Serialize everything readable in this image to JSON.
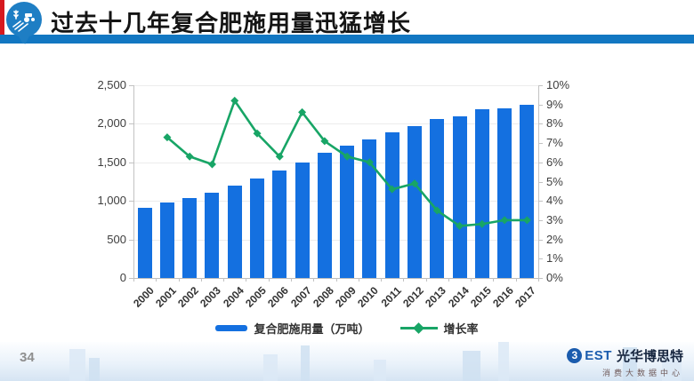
{
  "header": {
    "title": "过去十几年复合肥施用量迅猛增长"
  },
  "icons": {
    "balloon_logo": "agriculture-balloon-pin-icon",
    "brand_mark": "best-circle-3-icon"
  },
  "colors": {
    "title_underline": "#1277c2",
    "red_accent": "#d6191f",
    "bar_blue": "#1470e0",
    "line_green": "#18a566",
    "logo_blue": "#1b5cae"
  },
  "chart_data": {
    "type": "bar",
    "subtype": "bar+line combo",
    "categories": [
      "2000",
      "2001",
      "2002",
      "2003",
      "2004",
      "2005",
      "2006",
      "2007",
      "2008",
      "2009",
      "2010",
      "2011",
      "2012",
      "2013",
      "2014",
      "2015",
      "2016",
      "2017"
    ],
    "series": [
      {
        "name": "复合肥施用量（万吨）",
        "type": "bar",
        "axis": "left",
        "color": "#1470e0",
        "values": [
          910,
          980,
          1040,
          1110,
          1200,
          1290,
          1390,
          1500,
          1620,
          1720,
          1800,
          1890,
          1970,
          2060,
          2100,
          2190,
          2200,
          2250
        ]
      },
      {
        "name": "增长率",
        "type": "line",
        "axis": "right",
        "color": "#18a566",
        "values": [
          null,
          7.3,
          6.3,
          5.9,
          9.2,
          7.5,
          6.3,
          8.6,
          7.1,
          6.3,
          6.0,
          4.6,
          4.9,
          3.5,
          2.7,
          2.8,
          3.0,
          3.0
        ]
      }
    ],
    "left_axis": {
      "min": 0,
      "max": 2500,
      "step": 500,
      "ticks": [
        "0",
        "500",
        "1,000",
        "1,500",
        "2,000",
        "2,500"
      ]
    },
    "right_axis": {
      "min": 0,
      "max": 10,
      "step": 1,
      "ticks": [
        "0%",
        "1%",
        "2%",
        "3%",
        "4%",
        "5%",
        "6%",
        "7%",
        "8%",
        "9%",
        "10%"
      ]
    },
    "grid": true,
    "legend_position": "bottom"
  },
  "footer": {
    "page_number": "34",
    "brand": {
      "circle_glyph": "3",
      "est": "EST",
      "name": "光华博思特",
      "subtitle": "消费大数据中心"
    }
  }
}
